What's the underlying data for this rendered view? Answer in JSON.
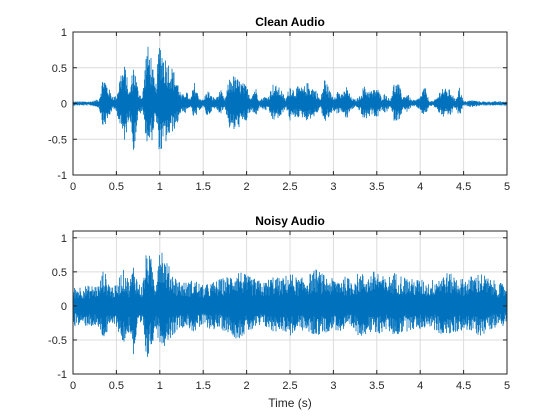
{
  "chart_data": [
    {
      "type": "line",
      "title": "Clean Audio",
      "xlabel": "",
      "ylabel": "",
      "xlim": [
        0,
        5
      ],
      "ylim": [
        -1,
        1
      ],
      "xticks": [
        0,
        0.5,
        1,
        1.5,
        2,
        2.5,
        3,
        3.5,
        4,
        4.5,
        5
      ],
      "xtick_labels": [
        "0",
        "0.5",
        "1",
        "1.5",
        "2",
        "2.5",
        "3",
        "3.5",
        "4",
        "4.5",
        "5"
      ],
      "yticks": [
        -1,
        -0.5,
        0,
        0.5,
        1
      ],
      "ytick_labels": [
        "-1",
        "-0.5",
        "0",
        "0.5",
        "1"
      ],
      "grid": true,
      "color": "#0072BD",
      "series": [
        {
          "x": [
            0,
            0.1,
            0.2,
            0.3,
            0.35,
            0.4,
            0.45,
            0.5,
            0.55,
            0.6,
            0.65,
            0.7,
            0.75,
            0.8,
            0.85,
            0.9,
            0.95,
            1.0,
            1.05,
            1.1,
            1.15,
            1.2,
            1.25,
            1.3,
            1.35,
            1.4,
            1.45,
            1.5,
            1.55,
            1.6,
            1.65,
            1.7,
            1.75,
            1.8,
            1.85,
            1.9,
            1.95,
            2.0,
            2.05,
            2.1,
            2.15,
            2.2,
            2.25,
            2.3,
            2.35,
            2.4,
            2.45,
            2.5,
            2.55,
            2.6,
            2.65,
            2.7,
            2.75,
            2.8,
            2.85,
            2.9,
            2.95,
            3.0,
            3.05,
            3.1,
            3.15,
            3.2,
            3.25,
            3.3,
            3.35,
            3.4,
            3.45,
            3.5,
            3.55,
            3.6,
            3.65,
            3.7,
            3.75,
            3.8,
            3.85,
            3.9,
            3.95,
            4.0,
            4.05,
            4.1,
            4.15,
            4.2,
            4.25,
            4.3,
            4.35,
            4.4,
            4.45,
            4.5,
            4.6,
            4.7,
            4.8,
            4.9,
            5.0
          ],
          "upper": [
            0.03,
            0.03,
            0.03,
            0.06,
            0.42,
            0.25,
            0.12,
            0.1,
            0.45,
            0.55,
            0.15,
            0.6,
            0.2,
            0.1,
            0.85,
            0.7,
            0.2,
            0.95,
            0.7,
            0.6,
            0.5,
            0.35,
            0.1,
            0.2,
            0.05,
            0.3,
            0.1,
            0.05,
            0.2,
            0.1,
            0.08,
            0.2,
            0.05,
            0.35,
            0.4,
            0.35,
            0.3,
            0.25,
            0.1,
            0.25,
            0.05,
            0.1,
            0.1,
            0.28,
            0.25,
            0.2,
            0.05,
            0.28,
            0.2,
            0.25,
            0.22,
            0.3,
            0.25,
            0.2,
            0.05,
            0.38,
            0.2,
            0.1,
            0.2,
            0.12,
            0.25,
            0.1,
            0.05,
            0.1,
            0.25,
            0.2,
            0.18,
            0.25,
            0.1,
            0.15,
            0.05,
            0.3,
            0.28,
            0.1,
            0.15,
            0.05,
            0.05,
            0.1,
            0.25,
            0.05,
            0.03,
            0.1,
            0.25,
            0.2,
            0.2,
            0.05,
            0.25,
            0.03,
            0.05,
            0.03,
            0.03,
            0.03,
            0.03
          ],
          "lower": [
            -0.03,
            -0.03,
            -0.03,
            -0.06,
            -0.35,
            -0.25,
            -0.1,
            -0.1,
            -0.4,
            -0.55,
            -0.15,
            -0.7,
            -0.2,
            -0.1,
            -0.55,
            -0.6,
            -0.2,
            -0.75,
            -0.6,
            -0.5,
            -0.4,
            -0.3,
            -0.1,
            -0.15,
            -0.05,
            -0.25,
            -0.1,
            -0.05,
            -0.2,
            -0.1,
            -0.08,
            -0.15,
            -0.05,
            -0.35,
            -0.4,
            -0.35,
            -0.3,
            -0.25,
            -0.1,
            -0.2,
            -0.05,
            -0.1,
            -0.1,
            -0.25,
            -0.22,
            -0.2,
            -0.05,
            -0.25,
            -0.2,
            -0.2,
            -0.2,
            -0.25,
            -0.2,
            -0.18,
            -0.05,
            -0.3,
            -0.2,
            -0.1,
            -0.15,
            -0.12,
            -0.25,
            -0.1,
            -0.05,
            -0.1,
            -0.25,
            -0.2,
            -0.15,
            -0.22,
            -0.1,
            -0.15,
            -0.05,
            -0.25,
            -0.25,
            -0.1,
            -0.12,
            -0.05,
            -0.05,
            -0.1,
            -0.2,
            -0.05,
            -0.03,
            -0.1,
            -0.2,
            -0.18,
            -0.18,
            -0.05,
            -0.2,
            -0.03,
            -0.05,
            -0.03,
            -0.03,
            -0.03,
            -0.03
          ]
        }
      ]
    },
    {
      "type": "line",
      "title": "Noisy Audio",
      "xlabel": "Time (s)",
      "ylabel": "",
      "xlim": [
        0,
        5
      ],
      "ylim": [
        -1,
        1.1
      ],
      "xticks": [
        0,
        0.5,
        1,
        1.5,
        2,
        2.5,
        3,
        3.5,
        4,
        4.5,
        5
      ],
      "xtick_labels": [
        "0",
        "0.5",
        "1",
        "1.5",
        "2",
        "2.5",
        "3",
        "3.5",
        "4",
        "4.5",
        "5"
      ],
      "yticks": [
        -1,
        -0.5,
        0,
        0.5,
        1
      ],
      "ytick_labels": [
        "-1",
        "-0.5",
        "0",
        "0.5",
        "1"
      ],
      "grid": true,
      "color": "#0072BD",
      "series": [
        {
          "x": [
            0,
            0.1,
            0.2,
            0.3,
            0.35,
            0.4,
            0.45,
            0.5,
            0.55,
            0.6,
            0.65,
            0.7,
            0.75,
            0.8,
            0.85,
            0.9,
            0.95,
            1.0,
            1.05,
            1.1,
            1.15,
            1.2,
            1.3,
            1.4,
            1.5,
            1.6,
            1.7,
            1.8,
            1.9,
            2.0,
            2.1,
            2.2,
            2.3,
            2.4,
            2.5,
            2.6,
            2.7,
            2.8,
            2.9,
            3.0,
            3.1,
            3.2,
            3.3,
            3.4,
            3.5,
            3.6,
            3.7,
            3.8,
            3.9,
            4.0,
            4.1,
            4.2,
            4.3,
            4.4,
            4.5,
            4.6,
            4.7,
            4.8,
            4.9,
            5.0
          ],
          "upper": [
            0.28,
            0.3,
            0.3,
            0.32,
            0.55,
            0.4,
            0.3,
            0.3,
            0.5,
            0.55,
            0.35,
            0.65,
            0.35,
            0.3,
            0.85,
            0.7,
            0.35,
            1.05,
            0.75,
            0.6,
            0.5,
            0.4,
            0.35,
            0.4,
            0.3,
            0.35,
            0.4,
            0.45,
            0.55,
            0.45,
            0.4,
            0.35,
            0.45,
            0.4,
            0.5,
            0.4,
            0.45,
            0.55,
            0.45,
            0.4,
            0.45,
            0.4,
            0.5,
            0.45,
            0.55,
            0.4,
            0.5,
            0.45,
            0.4,
            0.4,
            0.35,
            0.45,
            0.5,
            0.45,
            0.4,
            0.45,
            0.5,
            0.4,
            0.35,
            0.3
          ],
          "lower": [
            -0.3,
            -0.3,
            -0.3,
            -0.35,
            -0.5,
            -0.4,
            -0.3,
            -0.3,
            -0.5,
            -0.6,
            -0.35,
            -0.8,
            -0.35,
            -0.3,
            -0.85,
            -0.65,
            -0.35,
            -0.55,
            -0.6,
            -0.5,
            -0.45,
            -0.35,
            -0.3,
            -0.4,
            -0.3,
            -0.35,
            -0.35,
            -0.4,
            -0.5,
            -0.4,
            -0.35,
            -0.3,
            -0.4,
            -0.35,
            -0.45,
            -0.35,
            -0.4,
            -0.45,
            -0.4,
            -0.35,
            -0.4,
            -0.35,
            -0.45,
            -0.4,
            -0.45,
            -0.35,
            -0.45,
            -0.4,
            -0.35,
            -0.35,
            -0.3,
            -0.4,
            -0.45,
            -0.4,
            -0.35,
            -0.4,
            -0.45,
            -0.35,
            -0.3,
            -0.3
          ]
        }
      ]
    }
  ]
}
